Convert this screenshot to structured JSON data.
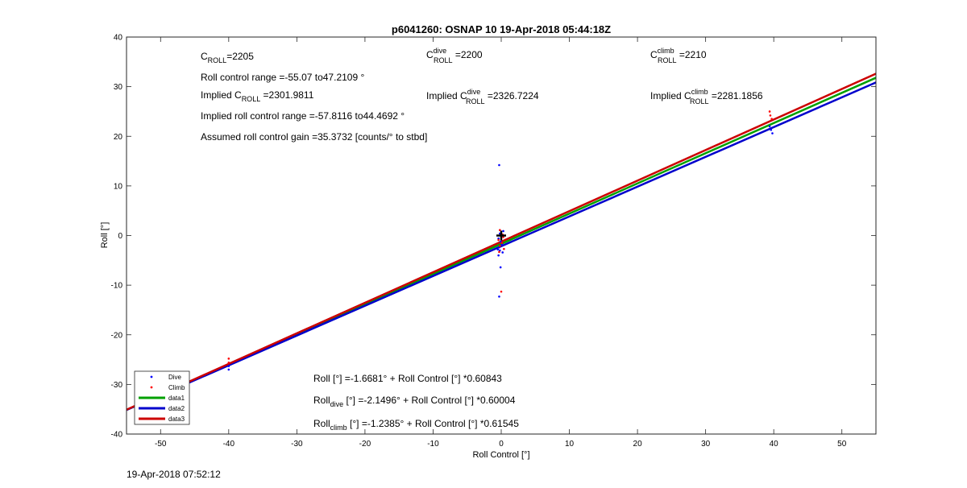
{
  "chart_data": {
    "type": "scatter",
    "title": "p6041260: OSNAP 10 19-Apr-2018 05:44:18Z",
    "xlabel": "Roll Control [°]",
    "ylabel": "Roll [°]",
    "xlim": [
      -55,
      55
    ],
    "ylim": [
      -40,
      40
    ],
    "xticks": [
      -50,
      -40,
      -30,
      -20,
      -10,
      0,
      10,
      20,
      30,
      40,
      50
    ],
    "yticks": [
      -40,
      -30,
      -20,
      -10,
      0,
      10,
      20,
      30,
      40
    ],
    "grid": false,
    "legend_position": "bottom-left",
    "series": [
      {
        "name": "Dive",
        "kind": "points",
        "color": "#0000ff",
        "points": [
          [
            -40,
            -27.0
          ],
          [
            -40,
            -26.3
          ],
          [
            -0.3,
            14.2
          ],
          [
            -0.2,
            0.4
          ],
          [
            -0.4,
            -0.6
          ],
          [
            -0.1,
            -1.2
          ],
          [
            0.1,
            -1.8
          ],
          [
            -0.3,
            -2.4
          ],
          [
            -0.2,
            -3.0
          ],
          [
            0.2,
            -3.4
          ],
          [
            -0.4,
            -4.0
          ],
          [
            -0.1,
            -6.4
          ],
          [
            -0.3,
            -12.3
          ],
          [
            0.3,
            0.9
          ],
          [
            -0.5,
            -2.8
          ],
          [
            39.6,
            21.3
          ],
          [
            39.8,
            20.6
          ],
          [
            39.4,
            22.0
          ]
        ]
      },
      {
        "name": "Climb",
        "kind": "points",
        "color": "#ff0000",
        "points": [
          [
            -40,
            -24.8
          ],
          [
            -40,
            -25.6
          ],
          [
            -0.2,
            1.1
          ],
          [
            0.2,
            0.2
          ],
          [
            -0.4,
            -0.9
          ],
          [
            0.1,
            -1.5
          ],
          [
            -0.2,
            -2.1
          ],
          [
            0.4,
            -2.7
          ],
          [
            -0.3,
            -3.3
          ],
          [
            0.0,
            -11.3
          ],
          [
            0.3,
            -0.3
          ],
          [
            39.4,
            25.0
          ],
          [
            39.5,
            24.2
          ],
          [
            39.7,
            23.5
          ]
        ]
      },
      {
        "name": "data1",
        "kind": "line",
        "color": "#00a000",
        "intercept": -1.6681,
        "slope": 0.60843
      },
      {
        "name": "data2",
        "kind": "line",
        "color": "#0000cc",
        "intercept": -2.1496,
        "slope": 0.60004
      },
      {
        "name": "data3",
        "kind": "line",
        "color": "#cc0000",
        "intercept": -1.2385,
        "slope": 0.61545
      }
    ],
    "center_marker": {
      "x": 0,
      "y": 0
    }
  },
  "annotations": {
    "c_roll": {
      "sym": "C",
      "sub": "ROLL",
      "value": "=2205"
    },
    "range": "Roll control range =-55.07 to47.2109 °",
    "implied_c_roll": {
      "prefix": "Implied C",
      "sub": "ROLL",
      "value": " =2301.9811"
    },
    "implied_range": "Implied roll control range =-57.8116 to44.4692 °",
    "gain": "Assumed roll control gain =35.3732 [counts/° to stbd]",
    "c_dive": {
      "sym": "C",
      "sup": "dive",
      "sub": "ROLL",
      "value": " =2200"
    },
    "implied_c_dive": {
      "prefix": "Implied C",
      "sup": "dive",
      "sub": "ROLL",
      "value": " =2326.7224"
    },
    "c_climb": {
      "sym": "C",
      "sup": "climb",
      "sub": "ROLL",
      "value": " =2210"
    },
    "implied_c_climb": {
      "prefix": "Implied C",
      "sup": "climb",
      "sub": "ROLL",
      "value": " =2281.1856"
    },
    "fit_all": "Roll [°] =-1.6681° + Roll Control [°] *0.60843",
    "fit_dive": {
      "prefix": "Roll",
      "sub": "dive",
      "rest": " [°] =-2.1496° + Roll Control [°] *0.60004"
    },
    "fit_climb": {
      "prefix": "Roll",
      "sub": "climb",
      "rest": " [°] =-1.2385° + Roll Control [°] *0.61545"
    }
  },
  "footer": "19-Apr-2018 07:52:12"
}
